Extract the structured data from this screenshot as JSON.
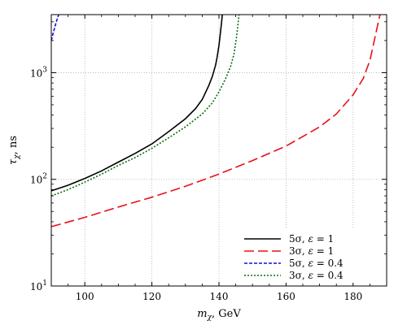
{
  "chart_data": {
    "type": "line",
    "xlabel_var": "m",
    "xlabel_sub": "χ",
    "xlabel_unit": ", GeV",
    "ylabel_var": "τ",
    "ylabel_sub": "χ",
    "ylabel_unit": ", ns",
    "xlim": [
      90,
      190
    ],
    "ylim": [
      10,
      3500
    ],
    "yscale": "log",
    "grid": true,
    "legend_position": "bottom-right",
    "x_ticks": [
      100,
      120,
      140,
      160,
      180
    ],
    "x_tick_labels": [
      "100",
      "120",
      "140",
      "160",
      "180"
    ],
    "y_ticks": [
      10,
      100,
      1000
    ],
    "y_tick_base": "10",
    "y_tick_exps": [
      "1",
      "2",
      "3"
    ],
    "series": [
      {
        "name": "5σ, ε = 1",
        "label_sig": "5σ, ",
        "label_eps": "ε",
        "label_val": " = 1",
        "color": "#000000",
        "dash": "none",
        "x": [
          90,
          95,
          100,
          105,
          110,
          115,
          120,
          125,
          130,
          133,
          135,
          137,
          138,
          139,
          139.5,
          140,
          140.4,
          140.8,
          141
        ],
        "y": [
          78,
          88,
          102,
          120,
          145,
          175,
          215,
          280,
          370,
          460,
          560,
          760,
          920,
          1180,
          1420,
          1800,
          2300,
          3000,
          3500
        ]
      },
      {
        "name": "3σ, ε = 1",
        "label_sig": "3σ, ",
        "label_eps": "ε",
        "label_val": " = 1",
        "color": "#e8101a",
        "dash": "12,5",
        "x": [
          90,
          100,
          110,
          120,
          130,
          140,
          150,
          160,
          170,
          175,
          180,
          183,
          185,
          186,
          187,
          188
        ],
        "y": [
          36,
          44,
          55,
          68,
          86,
          112,
          150,
          205,
          310,
          410,
          620,
          880,
          1300,
          1800,
          2500,
          3500
        ]
      },
      {
        "name": "5σ, ε = 0.4",
        "label_sig": "5σ, ",
        "label_eps": "ε",
        "label_val": " = 0.4",
        "color": "#1010d0",
        "dash": "4,2",
        "x": [
          90,
          90.8,
          91.5,
          92.2
        ],
        "y": [
          2000,
          2500,
          3000,
          3500
        ]
      },
      {
        "name": "3σ, ε = 0.4",
        "label_sig": "3σ, ",
        "label_eps": "ε",
        "label_val": " = 0.4",
        "color": "#0a6e0a",
        "dash": "2,2",
        "x": [
          90,
          95,
          100,
          105,
          110,
          115,
          120,
          125,
          130,
          135,
          138,
          140,
          142,
          143.5,
          144.5,
          145.2,
          146
        ],
        "y": [
          70,
          80,
          94,
          112,
          135,
          160,
          195,
          245,
          310,
          410,
          520,
          660,
          880,
          1150,
          1500,
          2100,
          3500
        ]
      }
    ]
  }
}
